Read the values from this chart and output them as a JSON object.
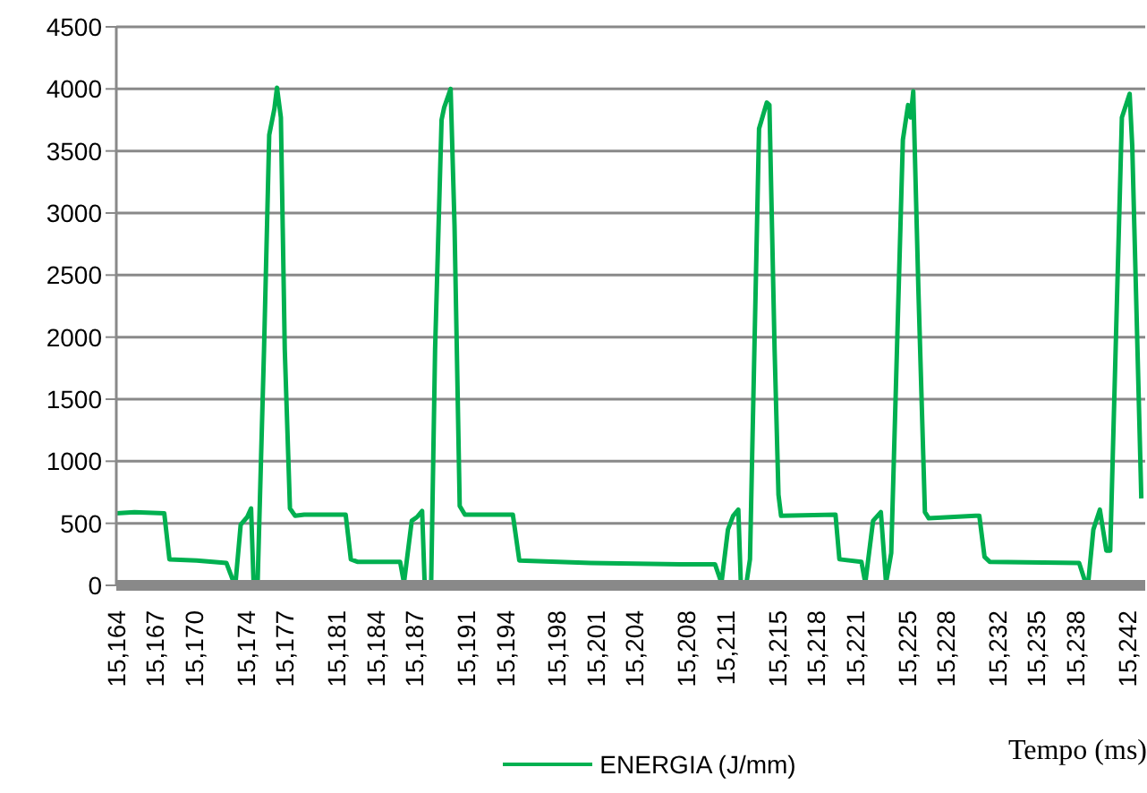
{
  "chart_data": {
    "type": "line",
    "xlabel": "Tempo (ms)",
    "x": [
      15164,
      15165.4,
      15167.7,
      15168.1,
      15170.2,
      15172.5,
      15173,
      15173.2,
      15173.6,
      15174.1,
      15174.4,
      15174.6,
      15174.9,
      15175.4,
      15175.8,
      15176.2,
      15176.4,
      15176.7,
      15177,
      15177.4,
      15177.8,
      15178.5,
      15181.7,
      15182.1,
      15182.6,
      15185.9,
      15186.2,
      15186.8,
      15187.2,
      15187.6,
      15187.8,
      15188.3,
      15188.6,
      15189.1,
      15189.3,
      15189.8,
      15190.1,
      15190.5,
      15190.9,
      15194.6,
      15195.1,
      15200.6,
      15207.5,
      15210.2,
      15210.7,
      15211.2,
      15211.6,
      15212,
      15212.2,
      15212.6,
      15212.9,
      15213.6,
      15214.2,
      15214.4,
      15214.8,
      15215.1,
      15215.3,
      15219.5,
      15219.8,
      15221.5,
      15221.8,
      15222.4,
      15223,
      15223.4,
      15223.8,
      15224.7,
      15225.1,
      15225.3,
      15225.5,
      15225.9,
      15226.4,
      15226.7,
      15230.3,
      15230.6,
      15231,
      15231.4,
      15238.3,
      15238.8,
      15239,
      15239.4,
      15239.9,
      15240.4,
      15240.7,
      15241.6,
      15242.2,
      15242.4,
      15243.1
    ],
    "series": [
      {
        "name": "ENERGIA (J/mm)",
        "color": "#00b050",
        "values": [
          580,
          590,
          580,
          210,
          200,
          180,
          40,
          20,
          490,
          550,
          620,
          0,
          0,
          1900,
          3630,
          3840,
          4010,
          3770,
          1900,
          620,
          560,
          570,
          570,
          210,
          190,
          190,
          20,
          520,
          550,
          600,
          0,
          30,
          1900,
          3750,
          3850,
          4000,
          2900,
          640,
          570,
          570,
          200,
          180,
          170,
          170,
          20,
          450,
          560,
          610,
          0,
          0,
          210,
          3680,
          3890,
          3870,
          1900,
          730,
          560,
          570,
          210,
          190,
          20,
          520,
          590,
          20,
          260,
          3590,
          3870,
          3770,
          3980,
          2370,
          590,
          540,
          560,
          560,
          230,
          190,
          180,
          20,
          20,
          450,
          610,
          280,
          280,
          3770,
          3960,
          3540,
          700
        ]
      }
    ],
    "xlim": [
      15164,
      15243.4
    ],
    "xticks": [
      {
        "value": 15164,
        "label": "15,164"
      },
      {
        "value": 15167,
        "label": "15,167"
      },
      {
        "value": 15170,
        "label": "15,170"
      },
      {
        "value": 15174,
        "label": "15,174"
      },
      {
        "value": 15177,
        "label": "15,177"
      },
      {
        "value": 15181,
        "label": "15,181"
      },
      {
        "value": 15184,
        "label": "15,184"
      },
      {
        "value": 15187,
        "label": "15,187"
      },
      {
        "value": 15191,
        "label": "15,191"
      },
      {
        "value": 15194,
        "label": "15,194"
      },
      {
        "value": 15198,
        "label": "15,198"
      },
      {
        "value": 15201,
        "label": "15,201"
      },
      {
        "value": 15204,
        "label": "15,204"
      },
      {
        "value": 15208,
        "label": "15,208"
      },
      {
        "value": 15211,
        "label": "15,211"
      },
      {
        "value": 15215,
        "label": "15,215"
      },
      {
        "value": 15218,
        "label": "15,218"
      },
      {
        "value": 15221,
        "label": "15,221"
      },
      {
        "value": 15225,
        "label": "15,225"
      },
      {
        "value": 15228,
        "label": "15,228"
      },
      {
        "value": 15232,
        "label": "15,232"
      },
      {
        "value": 15235,
        "label": "15,235"
      },
      {
        "value": 15238,
        "label": "15,238"
      },
      {
        "value": 15242,
        "label": "15,242"
      }
    ],
    "ylim": [
      0,
      4500
    ],
    "yticks": [
      0,
      500,
      1000,
      1500,
      2000,
      2500,
      3000,
      3500,
      4000,
      4500
    ],
    "grid": "y",
    "legend": "bottom",
    "marker": "none",
    "line_style": "solid"
  }
}
